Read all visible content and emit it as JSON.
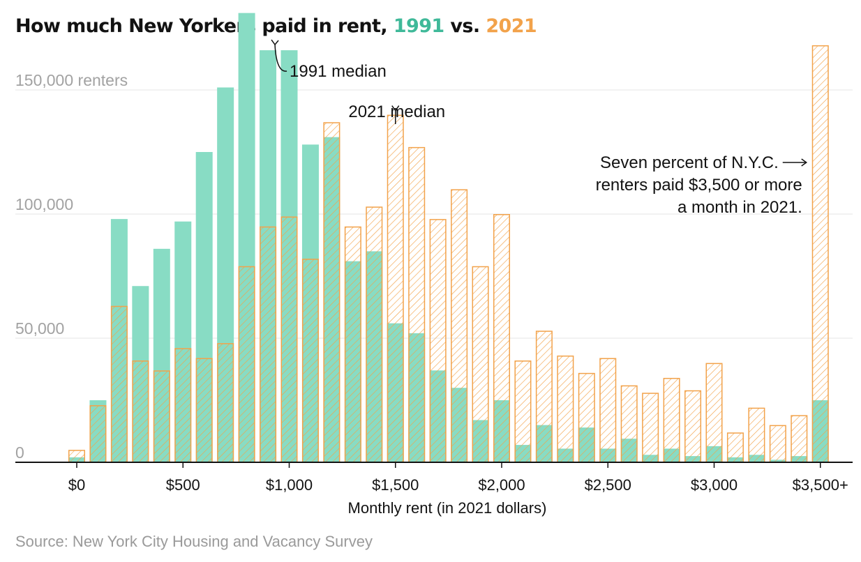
{
  "title": {
    "prefix": "How much New Yorkers paid in rent,",
    "year1": "1991",
    "middle": "vs.",
    "year2": "2021"
  },
  "source": "Source: New York City Housing and Vacancy Survey",
  "colors": {
    "y1991": "#88dcc4",
    "y2021": "#f2a24a",
    "y1991_text": "#3fb999",
    "grid": "#e6e6e6",
    "axis": "#121212",
    "muted": "#a2a2a2"
  },
  "chart_data": {
    "type": "bar",
    "title": "How much New Yorkers paid in rent, 1991 vs. 2021",
    "xlabel": "Monthly rent (in 2021 dollars)",
    "ylabel": "",
    "ylim": [
      0,
      175000
    ],
    "grid": true,
    "x_unit_step": 100,
    "categories": [
      0,
      100,
      200,
      300,
      400,
      500,
      600,
      700,
      800,
      900,
      1000,
      1100,
      1200,
      1300,
      1400,
      1500,
      1600,
      1700,
      1800,
      1900,
      2000,
      2100,
      2200,
      2300,
      2400,
      2500,
      2600,
      2700,
      2800,
      2900,
      3000,
      3100,
      3200,
      3300,
      3400,
      3500
    ],
    "series": [
      {
        "name": "1991",
        "style": "solid",
        "values": [
          2000,
          25000,
          98000,
          71000,
          86000,
          97000,
          125000,
          151000,
          181000,
          166000,
          166000,
          128000,
          131000,
          81000,
          85000,
          56000,
          52000,
          37000,
          30000,
          17000,
          25000,
          7000,
          15000,
          5500,
          14000,
          5500,
          9500,
          3000,
          5500,
          2500,
          6500,
          2000,
          3000,
          1000,
          2500,
          25000
        ]
      },
      {
        "name": "2021",
        "style": "hatched-outline",
        "values": [
          5000,
          23000,
          63000,
          41000,
          37000,
          46000,
          42000,
          48000,
          79000,
          95000,
          99000,
          82000,
          137000,
          95000,
          103000,
          140000,
          127000,
          98000,
          110000,
          79000,
          100000,
          41000,
          53000,
          43000,
          36000,
          42000,
          31000,
          28000,
          34000,
          29000,
          40000,
          12000,
          22000,
          15000,
          19000,
          168000
        ]
      }
    ],
    "y_ticks": [
      {
        "value": 0,
        "label": "0"
      },
      {
        "value": 50000,
        "label": "50,000"
      },
      {
        "value": 100000,
        "label": "100,000"
      },
      {
        "value": 150000,
        "label": "150,000 renters"
      }
    ],
    "x_ticks": [
      {
        "value": 0,
        "label": "$0"
      },
      {
        "value": 500,
        "label": "$500"
      },
      {
        "value": 1000,
        "label": "$1,000"
      },
      {
        "value": 1500,
        "label": "$1,500"
      },
      {
        "value": 2000,
        "label": "$2,000"
      },
      {
        "value": 2500,
        "label": "$2,500"
      },
      {
        "value": 3000,
        "label": "$3,000"
      },
      {
        "value": 3500,
        "label": "$3,500+"
      }
    ],
    "annotations": [
      {
        "id": "median-1991",
        "lines": [
          "1991 median"
        ],
        "target_x": 900,
        "arrow": "curved-down"
      },
      {
        "id": "median-2021",
        "lines": [
          "2021 median"
        ],
        "target_x": 1500,
        "arrow": "down"
      },
      {
        "id": "note-3500",
        "lines": [
          "Seven percent of N.Y.C.",
          "renters paid $3,500 or more",
          "a month in 2021."
        ],
        "target_x": 3500,
        "arrow": "right"
      }
    ]
  }
}
